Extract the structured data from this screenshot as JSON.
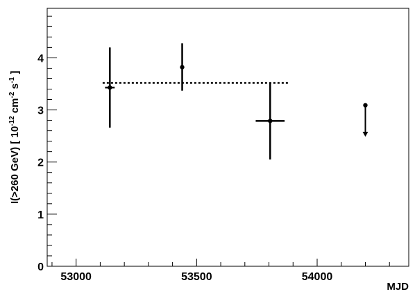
{
  "chart_data": {
    "type": "scatter",
    "title": "",
    "xlabel": "MJD",
    "ylabel": "I(>260 GeV) [ 10",
    "ylabel_exp1": "-12",
    "ylabel_mid": " cm",
    "ylabel_exp2": "-2",
    "ylabel_mid2": " s",
    "ylabel_exp3": "-1",
    "ylabel_end": " ]",
    "xlim": [
      52880,
      54380
    ],
    "ylim": [
      0,
      4.95
    ],
    "xticks": [
      {
        "value": 53000,
        "label": "53000"
      },
      {
        "value": 53500,
        "label": "53500"
      },
      {
        "value": 54000,
        "label": "54000"
      }
    ],
    "yticks": [
      {
        "value": 0,
        "label": "0"
      },
      {
        "value": 1,
        "label": "1"
      },
      {
        "value": 2,
        "label": "2"
      },
      {
        "value": 3,
        "label": "3"
      },
      {
        "value": 4,
        "label": "4"
      }
    ],
    "grid": false,
    "points": [
      {
        "x": 53140,
        "y": 3.43,
        "xerr": 20,
        "yerr_low": 0.77,
        "yerr_high": 0.77
      },
      {
        "x": 53440,
        "y": 3.82,
        "xerr": 0,
        "yerr_low": 0.45,
        "yerr_high": 0.46
      },
      {
        "x": 53805,
        "y": 2.79,
        "xerr": 60,
        "yerr_low": 0.74,
        "yerr_high": 0.74
      }
    ],
    "upper_limits": [
      {
        "x": 54200,
        "y": 3.09,
        "arrow_to": 2.5
      }
    ],
    "mean_line": {
      "value": 3.52,
      "x_start": 53110,
      "x_end": 53885,
      "style": "dotted"
    }
  }
}
